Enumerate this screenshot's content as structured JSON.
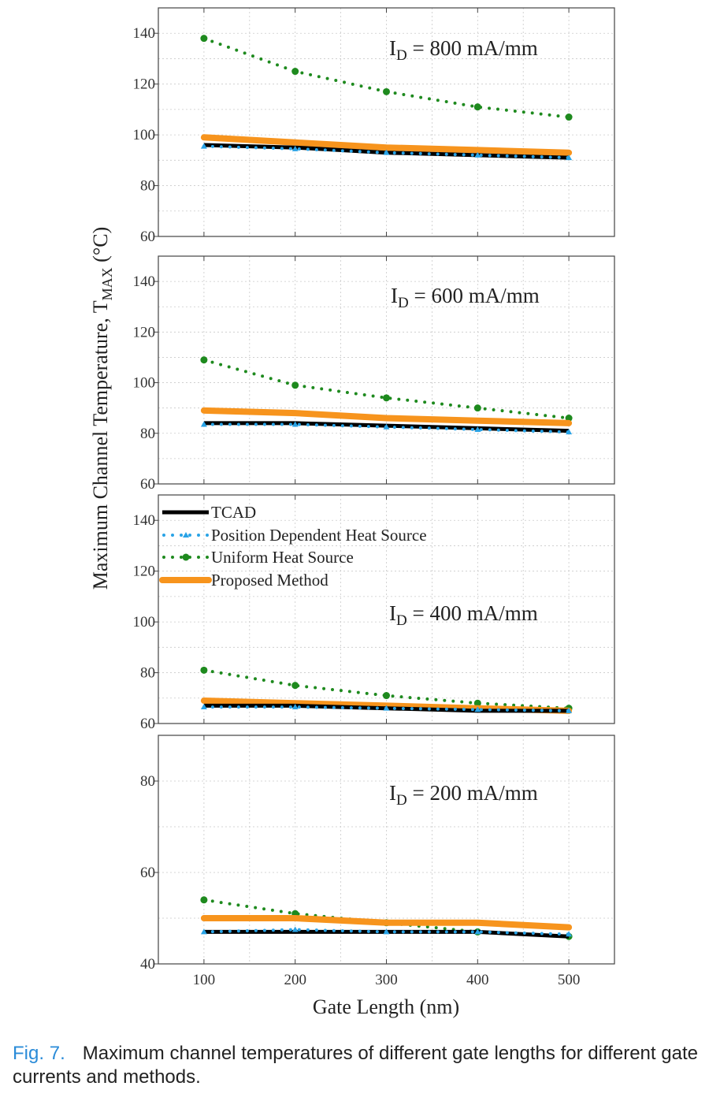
{
  "chart_data": {
    "type": "line",
    "ylabel": "Maximum Channel Temperature, T",
    "ylabel_sub": "MAX",
    "ylabel_unit": " (°C)",
    "xlabel": "Gate Length (nm)",
    "x": [
      100,
      200,
      300,
      400,
      500
    ],
    "x_ticks": [
      "100",
      "200",
      "300",
      "400",
      "500"
    ],
    "xlim": [
      50,
      550
    ],
    "grid": true,
    "legend": {
      "placement": "top-left of third panel",
      "entries": [
        {
          "name": "TCAD",
          "color": "#000000"
        },
        {
          "name": "Position Dependent Heat Source",
          "color": "#29a3e6"
        },
        {
          "name": "Uniform Heat Source",
          "color": "#1e8a1e"
        },
        {
          "name": "Proposed Method",
          "color": "#f7941d"
        }
      ]
    },
    "panels": [
      {
        "label_main": "I",
        "label_sub": "D",
        "label_rest": " = 800 mA/mm",
        "ylim": [
          60,
          150
        ],
        "yticks": [
          60,
          80,
          100,
          120,
          140
        ],
        "series": [
          {
            "name": "TCAD",
            "values": [
              96,
              95,
              93,
              92,
              91
            ]
          },
          {
            "name": "Position Dependent Heat Source",
            "values": [
              95.5,
              94.5,
              93,
              92,
              91
            ]
          },
          {
            "name": "Uniform Heat Source",
            "values": [
              138,
              125,
              117,
              111,
              107
            ]
          },
          {
            "name": "Proposed Method",
            "values": [
              99,
              97,
              95,
              94,
              93
            ]
          }
        ]
      },
      {
        "label_main": "I",
        "label_sub": "D",
        "label_rest": " = 600 mA/mm",
        "ylim": [
          60,
          150
        ],
        "yticks": [
          60,
          80,
          100,
          120,
          140
        ],
        "series": [
          {
            "name": "TCAD",
            "values": [
              84,
              84,
              83,
              82,
              81
            ]
          },
          {
            "name": "Position Dependent Heat Source",
            "values": [
              83.5,
              83.5,
              82.5,
              81.5,
              80.5
            ]
          },
          {
            "name": "Uniform Heat Source",
            "values": [
              109,
              99,
              94,
              90,
              86
            ]
          },
          {
            "name": "Proposed Method",
            "values": [
              89,
              88,
              86,
              85,
              84
            ]
          }
        ]
      },
      {
        "label_main": "I",
        "label_sub": "D",
        "label_rest": " = 400 mA/mm",
        "ylim": [
          60,
          150
        ],
        "yticks": [
          60,
          80,
          100,
          120,
          140
        ],
        "series": [
          {
            "name": "TCAD",
            "values": [
              67,
              67,
              66,
              65,
              65
            ]
          },
          {
            "name": "Position Dependent Heat Source",
            "values": [
              66.5,
              66.5,
              66,
              65.5,
              65
            ]
          },
          {
            "name": "Uniform Heat Source",
            "values": [
              81,
              75,
              71,
              68,
              66
            ]
          },
          {
            "name": "Proposed Method",
            "values": [
              69,
              68,
              67,
              66,
              65
            ]
          }
        ]
      },
      {
        "label_main": "I",
        "label_sub": "D",
        "label_rest": " = 200 mA/mm",
        "ylim": [
          40,
          90
        ],
        "yticks": [
          40,
          60,
          80
        ],
        "series": [
          {
            "name": "TCAD",
            "values": [
              47,
              47,
              47,
              47,
              46
            ]
          },
          {
            "name": "Position Dependent Heat Source",
            "values": [
              47,
              47.5,
              47,
              47,
              46.5
            ]
          },
          {
            "name": "Uniform Heat Source",
            "values": [
              54,
              51,
              49,
              47,
              46
            ]
          },
          {
            "name": "Proposed Method",
            "values": [
              50,
              50,
              49,
              49,
              48
            ]
          }
        ]
      }
    ]
  },
  "caption": {
    "label": "Fig. 7.",
    "text": "Maximum channel temperatures of different gate lengths for different gate currents and methods."
  }
}
